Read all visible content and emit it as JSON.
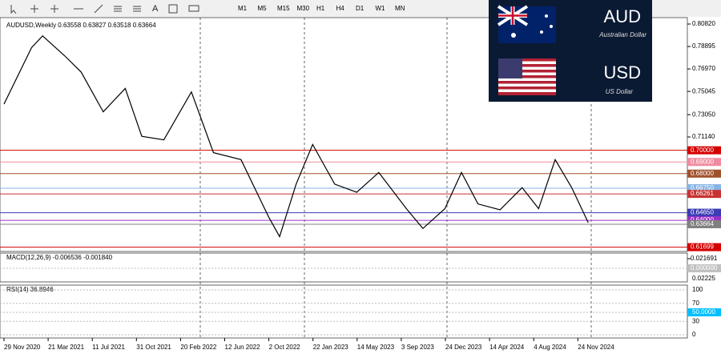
{
  "toolbar": {
    "timeframes": [
      "M1",
      "M5",
      "M15",
      "M30",
      "H1",
      "H4",
      "D1",
      "W1",
      "MN"
    ]
  },
  "chart": {
    "symbol_info": "AUDUSD,Weekly  0.63558 0.63827 0.63518 0.63664",
    "price_scale": [
      {
        "value": 0.8082,
        "label": "0.80820"
      },
      {
        "value": 0.78895,
        "label": "0.78895"
      },
      {
        "value": 0.7697,
        "label": "0.76970"
      },
      {
        "value": 0.75045,
        "label": "0.75045"
      },
      {
        "value": 0.7305,
        "label": "0.73050"
      },
      {
        "value": 0.7114,
        "label": "0.71140"
      }
    ],
    "levels": [
      {
        "value": 0.7,
        "label": "0.70000",
        "color": "#d40000"
      },
      {
        "value": 0.69,
        "label": "0.69000",
        "color": "#f08ca0"
      },
      {
        "value": 0.68,
        "label": "0.68000",
        "color": "#a0522d"
      },
      {
        "value": 0.6675,
        "label": "0.66750",
        "color": "#87b4e6"
      },
      {
        "value": 0.66261,
        "label": "0.66261",
        "color": "#c83232"
      },
      {
        "value": 0.6465,
        "label": "0.64650",
        "color": "#3c3cb4"
      },
      {
        "value": 0.64,
        "label": "0.64000",
        "color": "#9b30c8"
      },
      {
        "value": 0.63664,
        "label": "0.63664",
        "color": "#808080"
      },
      {
        "value": 0.61699,
        "label": "0.61699",
        "color": "#d40000"
      }
    ],
    "dates": [
      "29 Nov 2020",
      "21 Mar 2021",
      "11 Jul 2021",
      "31 Oct 2021",
      "20 Feb 2022",
      "12 Jun 2022",
      "2 Oct 2022",
      "22 Jan 2023",
      "14 May 2023",
      "3 Sep 2023",
      "24 Dec 2023",
      "14 Apr 2024",
      "4 Aug 2024",
      "24 Nov 2024"
    ],
    "price_path": {
      "week": [
        0,
        10,
        14,
        22,
        28,
        36,
        44,
        50,
        58,
        68,
        76,
        86,
        96,
        100,
        106,
        112,
        120,
        128,
        136,
        146,
        152,
        160,
        166,
        172,
        180,
        188,
        194,
        200,
        206,
        212
      ],
      "close": [
        0.7396,
        0.788,
        0.798,
        0.781,
        0.767,
        0.733,
        0.753,
        0.712,
        0.709,
        0.75,
        0.698,
        0.692,
        0.643,
        0.626,
        0.671,
        0.705,
        0.671,
        0.664,
        0.681,
        0.65,
        0.633,
        0.65,
        0.681,
        0.654,
        0.649,
        0.668,
        0.65,
        0.692,
        0.668,
        0.638
      ]
    }
  },
  "macd": {
    "label": "MACD(12,26,9) -0.006536 -0.001840",
    "scale": [
      {
        "value": 0.021691,
        "label": "0.021691"
      },
      {
        "value": 0,
        "label": "0.000000"
      }
    ],
    "low_label": "0.02225"
  },
  "rsi": {
    "label": "RSI(14) 36.8946",
    "levels": [
      100,
      70,
      {
        "value": 50,
        "label": "50.0000"
      },
      30,
      0
    ]
  },
  "banner": {
    "base": "AUD",
    "base_name": "Australian Dollar",
    "quote": "USD",
    "quote_name": "US Dollar"
  }
}
